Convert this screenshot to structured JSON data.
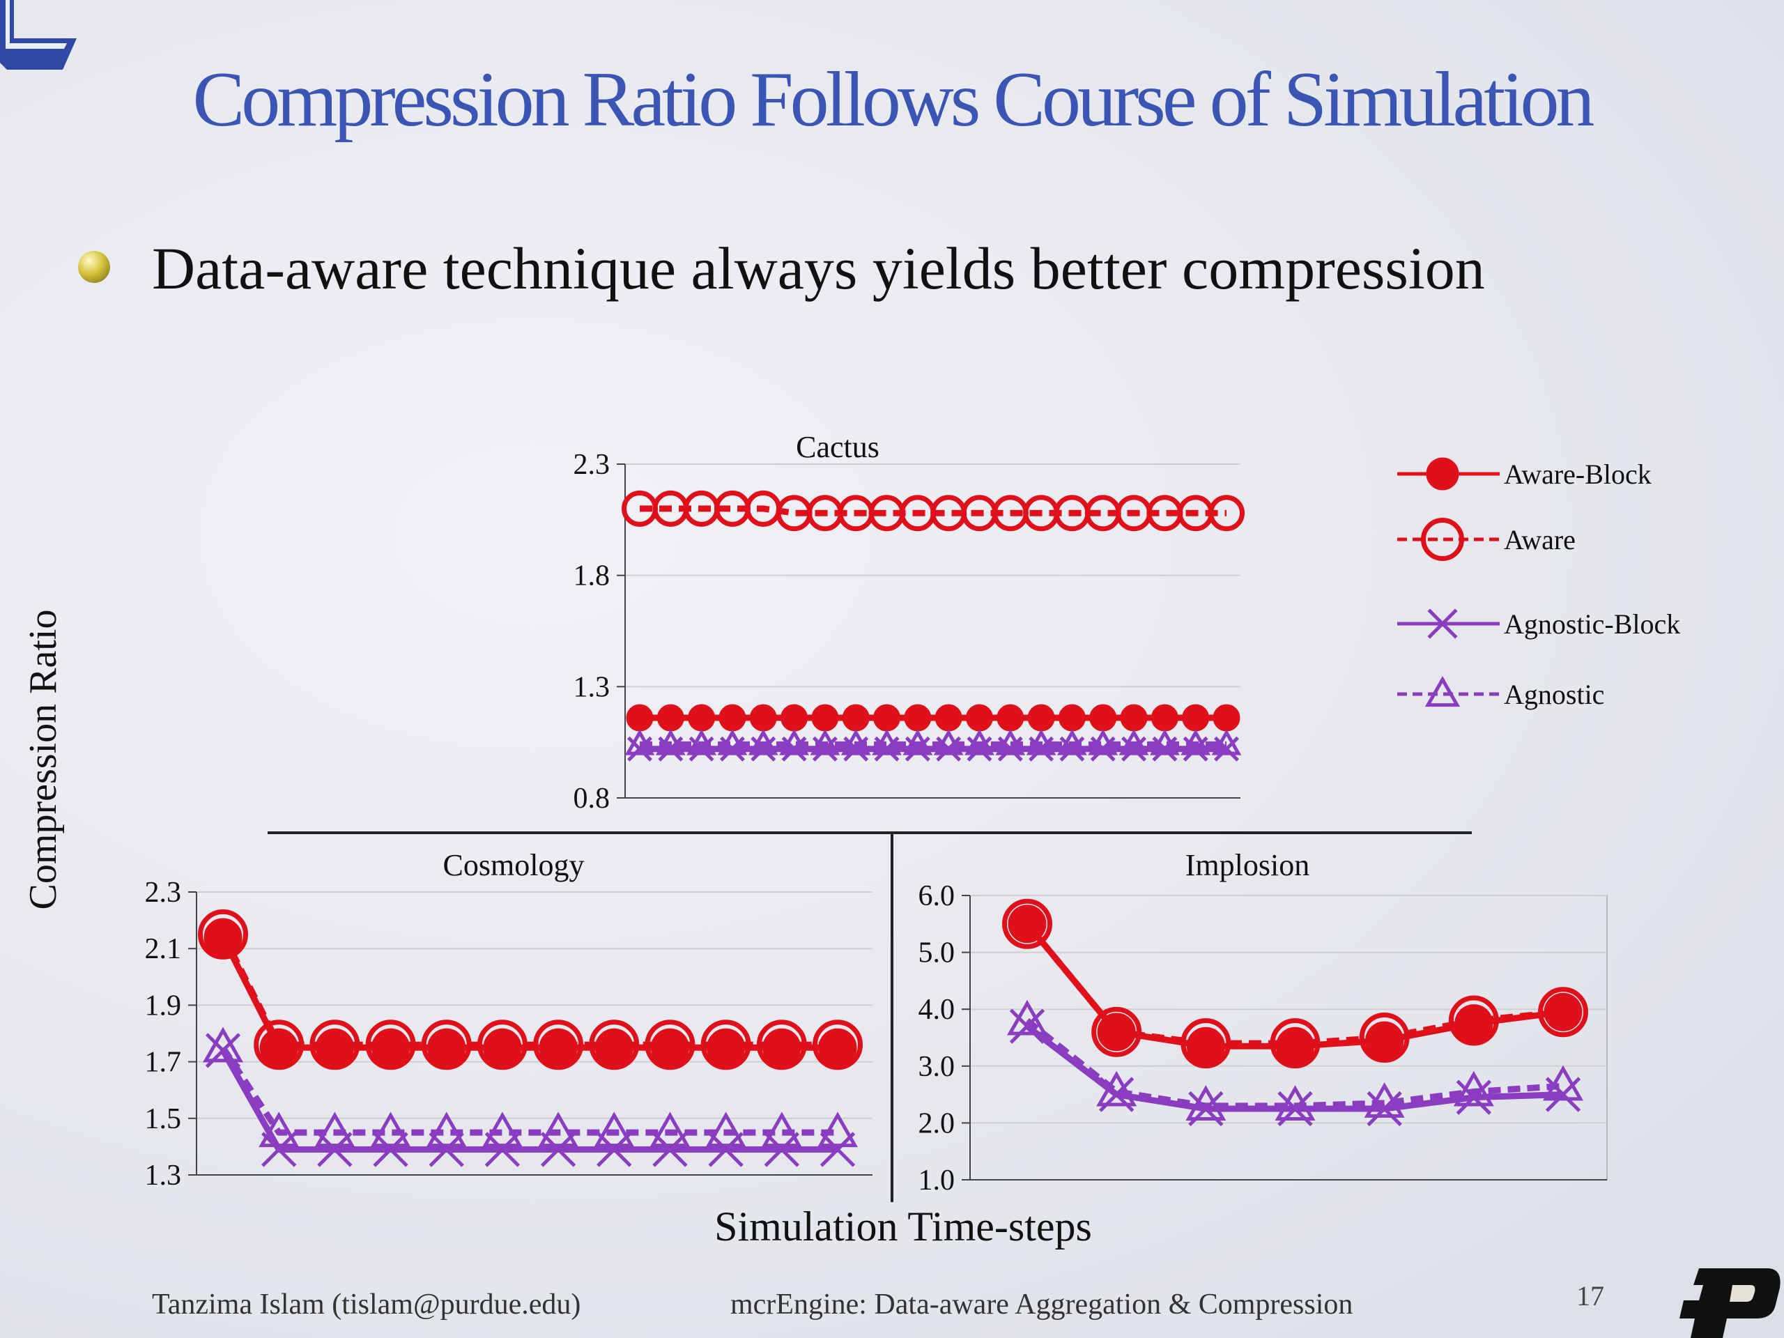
{
  "slide": {
    "title": "Compression Ratio Follows Course of Simulation",
    "bullet": "Data-aware technique always yields better compression",
    "y_axis_label": "Compression Ratio",
    "x_axis_label": "Simulation Time-steps",
    "footer_left": "Tanzima Islam (tislam@purdue.edu)",
    "footer_mid": "mcrEngine: Data-aware Aggregation & Compression",
    "slide_number": "17",
    "brand_logo_icon": "purdue-p-logo-icon",
    "corner_logo_icon": "corner-mark-icon"
  },
  "colors": {
    "title": "#3a55b4",
    "aware": "#e0101a",
    "agnostic": "#8a3dc0",
    "frame": "#222222"
  },
  "chart_data": [
    {
      "type": "line",
      "title": "Cactus",
      "ylim": [
        0.8,
        2.3
      ],
      "yticks": [
        "0.8",
        "1.3",
        "1.8",
        "2.3"
      ],
      "x": [
        1,
        2,
        3,
        4,
        5,
        6,
        7,
        8,
        9,
        10,
        11,
        12,
        13,
        14,
        15,
        16,
        17,
        18,
        19,
        20
      ],
      "grid": true,
      "series": [
        {
          "name": "Aware-Block",
          "values": [
            1.16,
            1.16,
            1.16,
            1.16,
            1.16,
            1.16,
            1.16,
            1.16,
            1.16,
            1.16,
            1.16,
            1.16,
            1.16,
            1.16,
            1.16,
            1.16,
            1.16,
            1.16,
            1.16,
            1.16
          ]
        },
        {
          "name": "Aware",
          "values": [
            2.1,
            2.1,
            2.1,
            2.1,
            2.1,
            2.08,
            2.08,
            2.08,
            2.08,
            2.08,
            2.08,
            2.08,
            2.08,
            2.08,
            2.08,
            2.08,
            2.08,
            2.08,
            2.08,
            2.08
          ]
        },
        {
          "name": "Agnostic-Block",
          "values": [
            1.02,
            1.02,
            1.02,
            1.02,
            1.02,
            1.02,
            1.02,
            1.02,
            1.02,
            1.02,
            1.02,
            1.02,
            1.02,
            1.02,
            1.02,
            1.02,
            1.02,
            1.02,
            1.02,
            1.02
          ]
        },
        {
          "name": "Agnostic",
          "values": [
            1.04,
            1.04,
            1.04,
            1.04,
            1.04,
            1.04,
            1.04,
            1.04,
            1.04,
            1.04,
            1.04,
            1.04,
            1.04,
            1.04,
            1.04,
            1.04,
            1.04,
            1.04,
            1.04,
            1.04
          ]
        }
      ],
      "legend": "right",
      "legend_entries": [
        "Aware-Block",
        "Aware",
        "Agnostic-Block",
        "Agnostic"
      ]
    },
    {
      "type": "line",
      "title": "Cosmology",
      "ylim": [
        1.3,
        2.3
      ],
      "yticks": [
        "1.3",
        "1.5",
        "1.7",
        "1.9",
        "2.1",
        "2.3"
      ],
      "x": [
        1,
        2,
        3,
        4,
        5,
        6,
        7,
        8,
        9,
        10,
        11,
        12
      ],
      "grid": true,
      "series": [
        {
          "name": "Aware-Block",
          "values": [
            2.14,
            1.75,
            1.75,
            1.75,
            1.75,
            1.75,
            1.75,
            1.75,
            1.75,
            1.75,
            1.75,
            1.75
          ]
        },
        {
          "name": "Aware",
          "values": [
            2.15,
            1.76,
            1.76,
            1.76,
            1.76,
            1.76,
            1.76,
            1.76,
            1.76,
            1.76,
            1.76,
            1.76
          ]
        },
        {
          "name": "Agnostic-Block",
          "values": [
            1.74,
            1.39,
            1.39,
            1.39,
            1.39,
            1.39,
            1.39,
            1.39,
            1.39,
            1.39,
            1.39,
            1.39
          ]
        },
        {
          "name": "Agnostic",
          "values": [
            1.75,
            1.45,
            1.45,
            1.45,
            1.45,
            1.45,
            1.45,
            1.45,
            1.45,
            1.45,
            1.45,
            1.45
          ]
        }
      ]
    },
    {
      "type": "line",
      "title": "Implosion",
      "ylim": [
        1.0,
        6.0
      ],
      "yticks": [
        "1.0",
        "2.0",
        "3.0",
        "4.0",
        "5.0",
        "6.0"
      ],
      "x": [
        1,
        2,
        3,
        4,
        5,
        6,
        7
      ],
      "grid": true,
      "series": [
        {
          "name": "Aware-Block",
          "values": [
            5.5,
            3.6,
            3.35,
            3.35,
            3.45,
            3.75,
            3.95
          ]
        },
        {
          "name": "Aware",
          "values": [
            5.5,
            3.6,
            3.4,
            3.4,
            3.5,
            3.8,
            3.95
          ]
        },
        {
          "name": "Agnostic-Block",
          "values": [
            3.7,
            2.5,
            2.25,
            2.25,
            2.25,
            2.45,
            2.5
          ]
        },
        {
          "name": "Agnostic",
          "values": [
            3.8,
            2.55,
            2.3,
            2.3,
            2.35,
            2.55,
            2.65
          ]
        }
      ]
    }
  ]
}
